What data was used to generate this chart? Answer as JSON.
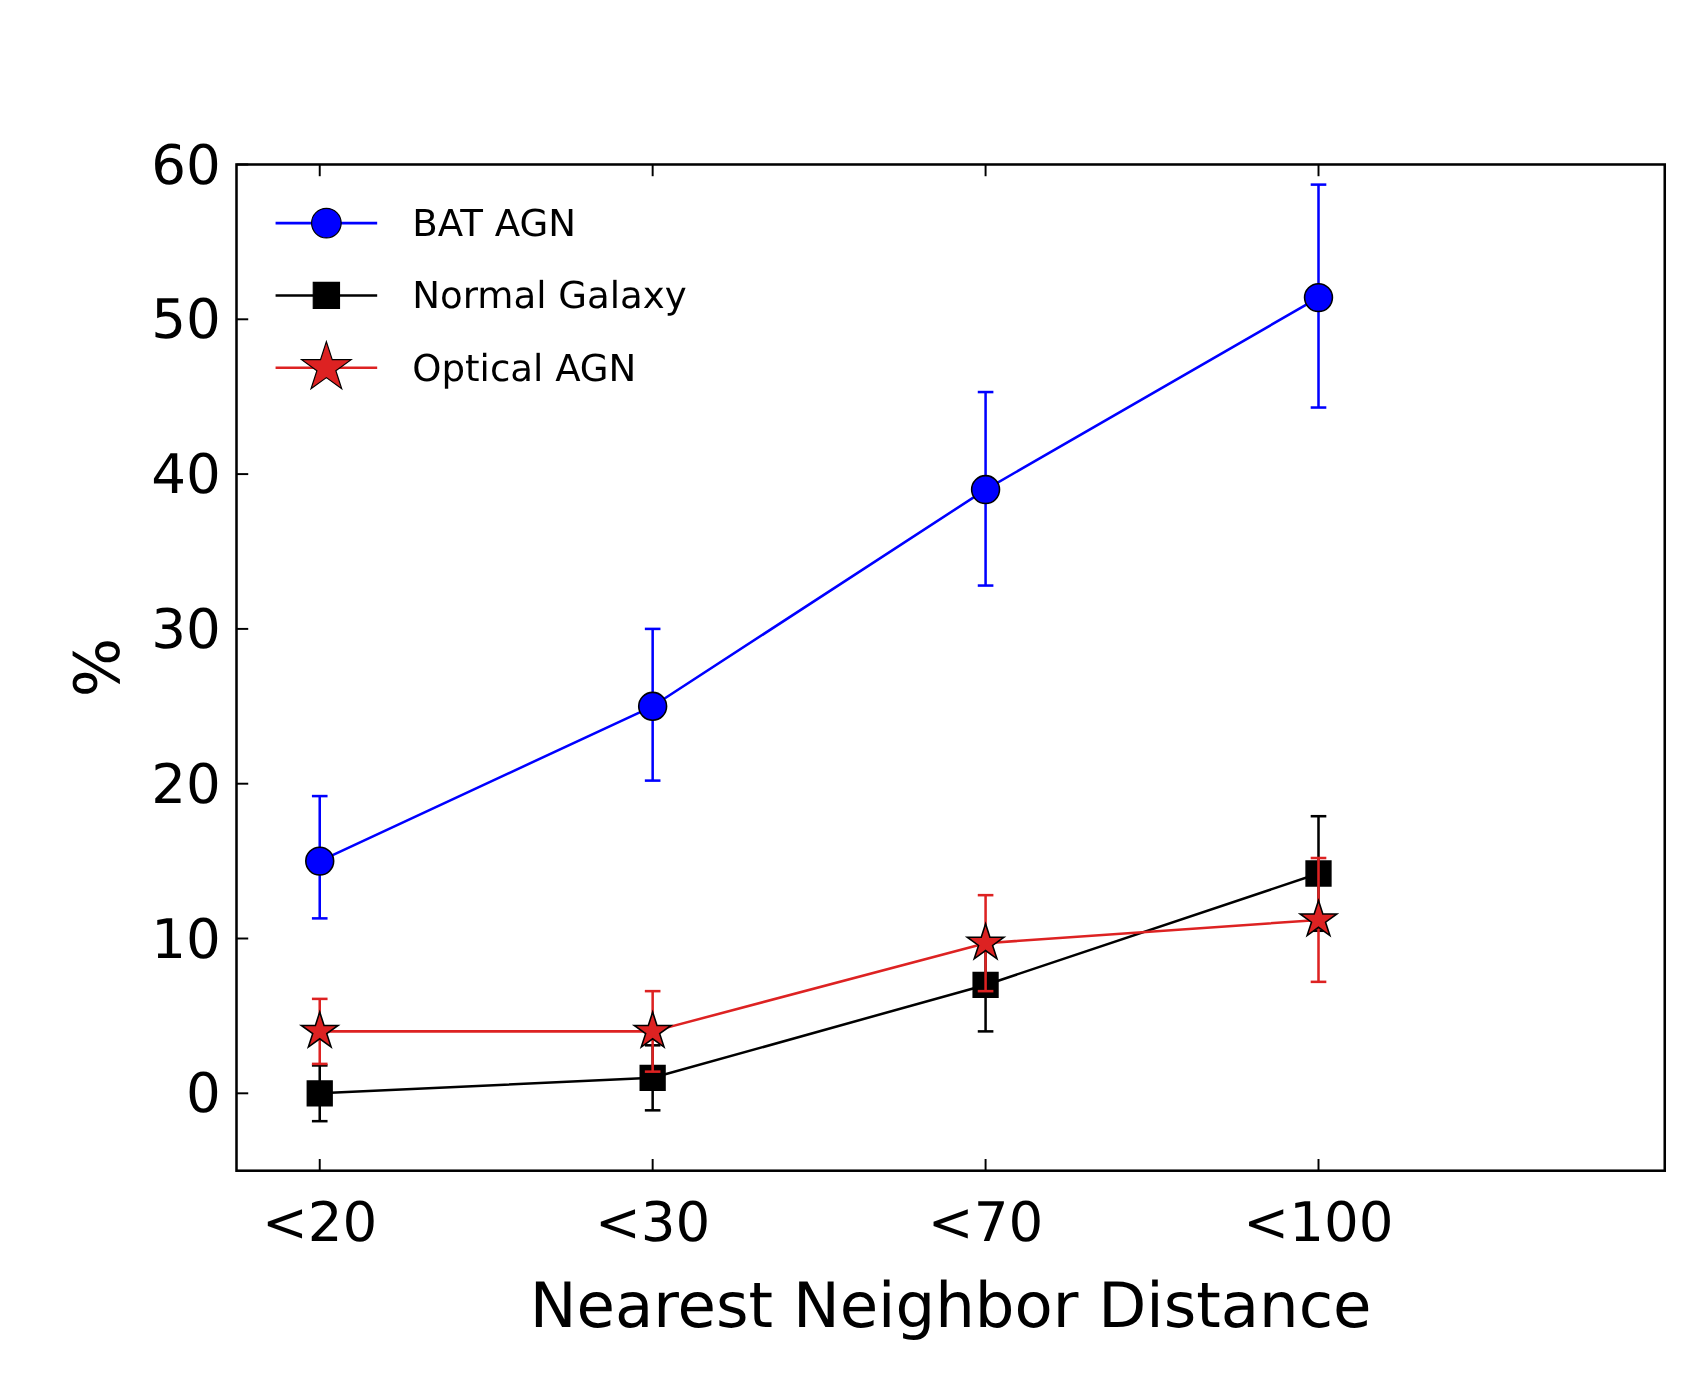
{
  "chart_data": {
    "type": "line",
    "xlabel": "Nearest Neighbor Distance",
    "ylabel": "%",
    "categories": [
      "<20",
      "<30",
      "<70",
      "<100"
    ],
    "ylim": [
      -5,
      60
    ],
    "yticks": [
      0,
      10,
      20,
      30,
      40,
      50,
      60
    ],
    "grid": false,
    "legend": "top left",
    "line_style": "solid",
    "series": [
      {
        "name": "BAT AGN",
        "color": "#0000ff",
        "marker": "circle",
        "values": [
          15,
          25,
          39,
          51.4
        ],
        "errors": [
          [
            11.3,
            19.2
          ],
          [
            20.2,
            30
          ],
          [
            32.8,
            45.3
          ],
          [
            44.3,
            58.7
          ]
        ]
      },
      {
        "name": "Normal Galaxy",
        "color": "#000000",
        "marker": "square",
        "values": [
          0,
          1,
          7,
          14.2
        ],
        "errors": [
          1.8,
          2.1,
          3,
          3.7
        ]
      },
      {
        "name": "Optical AGN",
        "color": "#dd2222",
        "marker": "star",
        "values": [
          4,
          4,
          9.7,
          11.2
        ],
        "errors": [
          2.1,
          2.6,
          3.1,
          4
        ]
      }
    ]
  }
}
